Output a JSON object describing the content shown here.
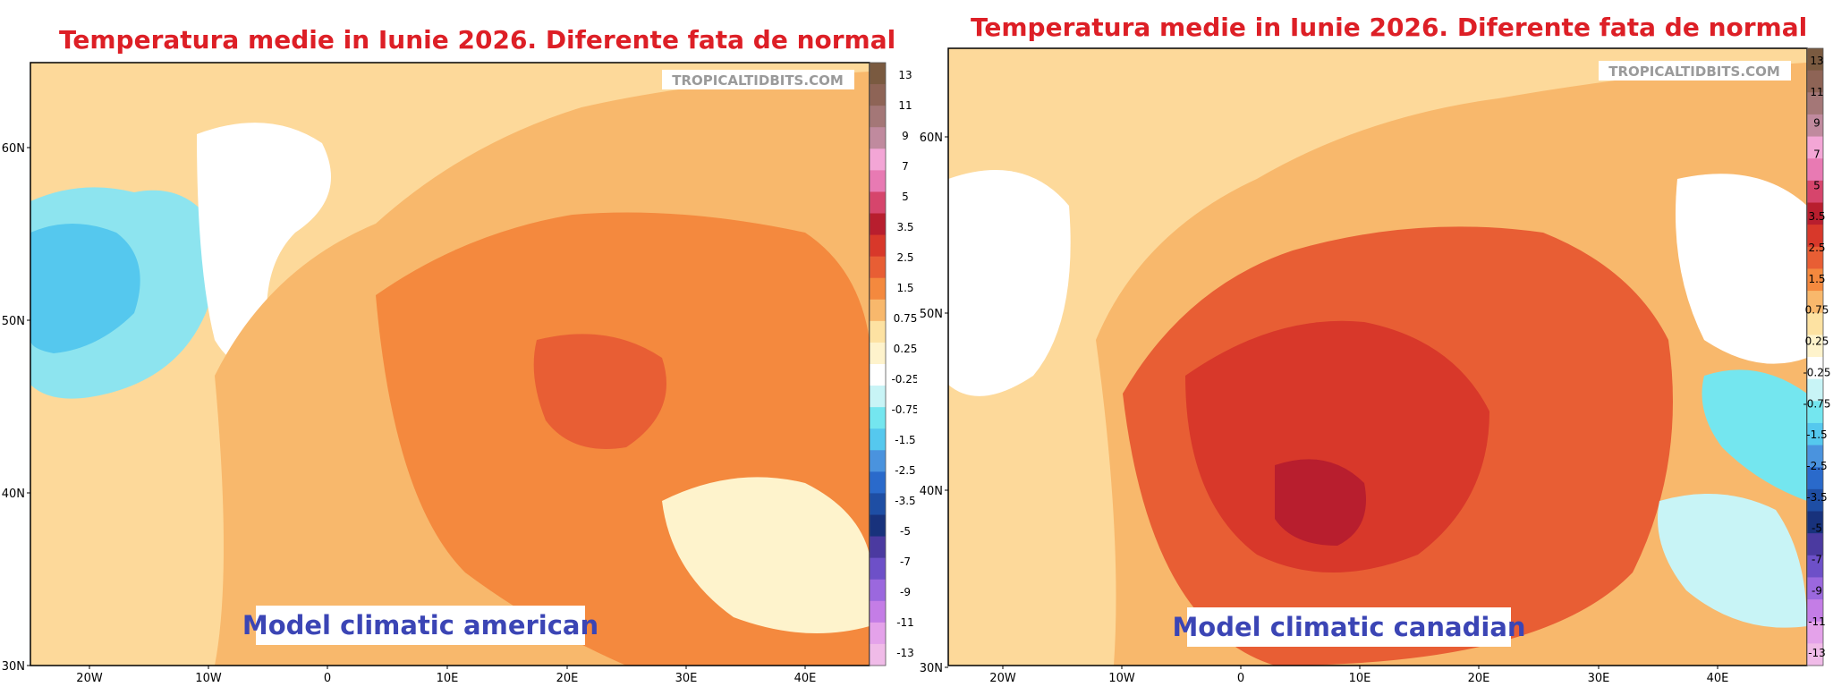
{
  "left": {
    "title": "Temperatura medie in Iunie 2026. Diferente fata de normal",
    "watermark": "TROPICALTIDBITS.COM",
    "model_label": "Model climatic american"
  },
  "right": {
    "title": "Temperatura medie in Iunie 2026. Diferente fata de normal",
    "watermark": "TROPICALTIDBITS.COM",
    "model_label": "Model climatic canadian"
  },
  "lat_ticks": [
    "60N",
    "50N",
    "40N",
    "30N"
  ],
  "lon_ticks": [
    "20W",
    "10W",
    "0",
    "10E",
    "20E",
    "30E",
    "40E"
  ],
  "colorbar_labels": [
    "13",
    "11",
    "9",
    "7",
    "5",
    "3.5",
    "2.5",
    "1.5",
    "0.75",
    "0.25",
    "-0.25",
    "-0.75",
    "-1.5",
    "-2.5",
    "-3.5",
    "-5",
    "-7",
    "-9",
    "-11",
    "-13"
  ],
  "colorbar_colors": [
    "#7a5a40",
    "#8e6456",
    "#a47777",
    "#c08a9e",
    "#f3a6d6",
    "#e87ab3",
    "#d6456c",
    "#b81e2e",
    "#d8382a",
    "#e85e34",
    "#f4893e",
    "#f8b86c",
    "#fde2a2",
    "#fef3cc",
    "#ffffff",
    "#c8f4f6",
    "#74e6ef",
    "#55c8ee",
    "#4a93de",
    "#2a6acb",
    "#1e4ea4",
    "#18327c",
    "#4b3aa0",
    "#6d50c8",
    "#9b68de",
    "#c47de6",
    "#e4a2ea",
    "#f0bbe8"
  ],
  "colors": {
    "title": "#dd1f26",
    "model_label": "#3b45b5"
  }
}
